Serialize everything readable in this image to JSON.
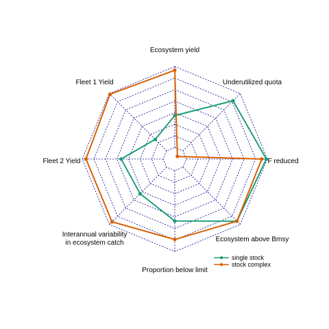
{
  "chart_data": {
    "type": "radar",
    "axes": [
      {
        "label": [
          "Ecosystem yield"
        ]
      },
      {
        "label": [
          "Underutilized quota"
        ]
      },
      {
        "label": [
          "F reduced"
        ]
      },
      {
        "label": [
          "Ecosystem above Bmsy"
        ]
      },
      {
        "label": [
          "Proportion below limit"
        ]
      },
      {
        "label": [
          "Interannual variability",
          "in ecosystem catch"
        ]
      },
      {
        "label": [
          "Fleet 2 Yield"
        ]
      },
      {
        "label": [
          "Fleet 1 Yield"
        ]
      }
    ],
    "rlim": [
      0,
      1
    ],
    "grid_rings": 8,
    "grid": true,
    "series": [
      {
        "name": "single stock",
        "color": "#1B9E77",
        "values": [
          0.47,
          0.89,
          0.99,
          0.95,
          0.67,
          0.53,
          0.58,
          0.3
        ]
      },
      {
        "name": "stock complex",
        "color": "#D95F02",
        "values": [
          0.96,
          0.04,
          0.94,
          0.95,
          0.87,
          0.96,
          0.96,
          0.99
        ]
      }
    ],
    "legend": {
      "position": "bottom-right",
      "entries": [
        "single stock",
        "stock complex"
      ]
    }
  }
}
